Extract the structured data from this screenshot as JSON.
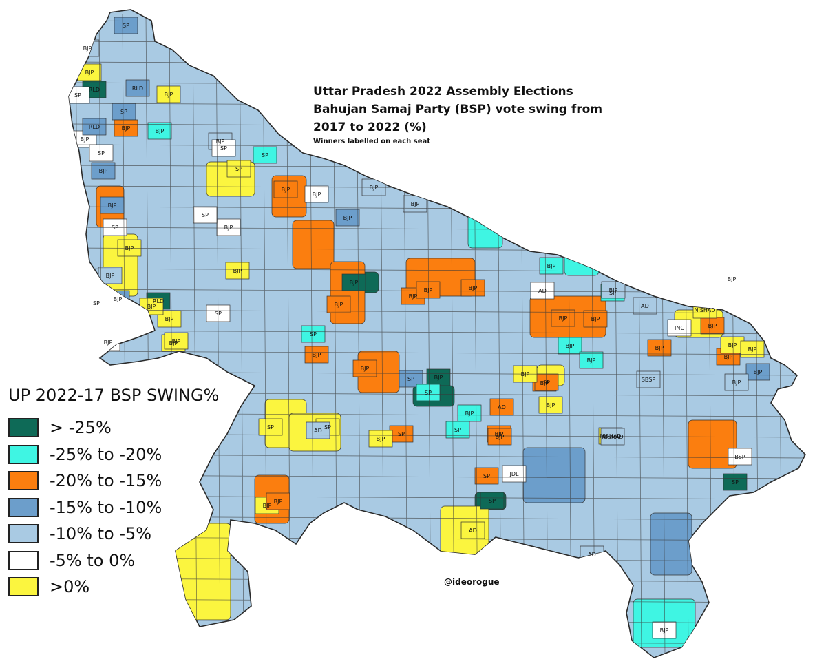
{
  "title_lines": [
    "Uttar Pradesh 2022 Assembly Elections",
    "Bahujan Samaj Party (BSP) vote swing from",
    "2017 to 2022 (%)"
  ],
  "subtitle": "Winners labelled on each seat",
  "credit": "@ideorogue",
  "legend": {
    "title": "UP 2022-17 BSP SWING%",
    "items": [
      {
        "label": "> -25%",
        "color": "#0e6a57"
      },
      {
        "label": "-25% to -20%",
        "color": "#3ff5e3"
      },
      {
        "label": "-20% to -15%",
        "color": "#fb7e0f"
      },
      {
        "label": "-15% to -10%",
        "color": "#6c9ecb"
      },
      {
        "label": "-10% to -5%",
        "color": "#a9cae3"
      },
      {
        "label": "-5% to 0%",
        "color": "#ffffff"
      },
      {
        "label": ">0%",
        "color": "#fbf53f"
      }
    ]
  },
  "seat_labels": [
    {
      "text": "SP",
      "category": 3
    },
    {
      "text": "BJP",
      "category": 4
    },
    {
      "text": "BJP",
      "category": 6
    },
    {
      "text": "RLD",
      "category": 0
    },
    {
      "text": "SP",
      "category": 5
    },
    {
      "text": "RLD",
      "category": 3
    },
    {
      "text": "BJP",
      "category": 6
    },
    {
      "text": "SP",
      "category": 3
    },
    {
      "text": "BJP",
      "category": 5
    },
    {
      "text": "SP",
      "category": 5
    },
    {
      "text": "RLD",
      "category": 3
    },
    {
      "text": "BJP",
      "category": 2
    },
    {
      "text": "BJP",
      "category": 1
    },
    {
      "text": "BJP",
      "category": 3
    },
    {
      "text": "BJP",
      "category": 4
    },
    {
      "text": "SP",
      "category": 5
    },
    {
      "text": "SP",
      "category": 6
    },
    {
      "text": "SP",
      "category": 1
    },
    {
      "text": "BJP",
      "category": 2
    },
    {
      "text": "BJP",
      "category": 5
    },
    {
      "text": "BJP",
      "category": 4
    },
    {
      "text": "BJP",
      "category": 4
    },
    {
      "text": "BJP",
      "category": 3
    },
    {
      "text": "BJP",
      "category": 5
    },
    {
      "text": "SP",
      "category": 5
    },
    {
      "text": "BJP",
      "category": 3
    },
    {
      "text": "SP",
      "category": 5
    },
    {
      "text": "BJP",
      "category": 6
    },
    {
      "text": "BJP",
      "category": 4
    },
    {
      "text": "BJP",
      "category": 3
    },
    {
      "text": "SP",
      "category": 5
    },
    {
      "text": "BJP",
      "category": 5
    },
    {
      "text": "BJP",
      "category": 6
    },
    {
      "text": "BJP",
      "category": 6
    },
    {
      "text": "RLD",
      "category": 0
    },
    {
      "text": "BJP",
      "category": 6
    },
    {
      "text": "BJP",
      "category": 6
    },
    {
      "text": "SP",
      "category": 5
    },
    {
      "text": "BJP",
      "category": 0
    },
    {
      "text": "SP",
      "category": 1
    },
    {
      "text": "BJP",
      "category": 2
    },
    {
      "text": "BJP",
      "category": 2
    },
    {
      "text": "BJP",
      "category": 2
    },
    {
      "text": "BJP",
      "category": 2
    },
    {
      "text": "BJP",
      "category": 2
    },
    {
      "text": "SP",
      "category": 3
    },
    {
      "text": "BJP",
      "category": 1
    },
    {
      "text": "BJP",
      "category": 1
    },
    {
      "text": "AD",
      "category": 5
    },
    {
      "text": "SP",
      "category": 1
    },
    {
      "text": "BJP",
      "category": 4
    },
    {
      "text": "AD",
      "category": 4
    },
    {
      "text": "BJP",
      "category": 2
    },
    {
      "text": "BJP",
      "category": 2
    },
    {
      "text": "BJP",
      "category": 2
    },
    {
      "text": "BJP",
      "category": 2
    },
    {
      "text": "BJP",
      "category": 2
    },
    {
      "text": "BJP",
      "category": 1
    },
    {
      "text": "BJP",
      "category": 2
    },
    {
      "text": "SP",
      "category": 2
    },
    {
      "text": "SP",
      "category": 1
    },
    {
      "text": "NISHAD",
      "category": 6
    },
    {
      "text": "BJP",
      "category": 2
    },
    {
      "text": "NISHAD",
      "category": 6
    },
    {
      "text": "BJP",
      "category": 2
    },
    {
      "text": "BJP",
      "category": 6
    },
    {
      "text": "BJP",
      "category": 6
    },
    {
      "text": "BJP",
      "category": 0
    },
    {
      "text": "SP",
      "category": 1
    },
    {
      "text": "SP",
      "category": 2
    },
    {
      "text": "BJP",
      "category": 6
    },
    {
      "text": "SP",
      "category": 6
    },
    {
      "text": "BJP",
      "category": 2
    },
    {
      "text": "BJP",
      "category": 6
    },
    {
      "text": "SP",
      "category": 6
    },
    {
      "text": "AD",
      "category": 4
    },
    {
      "text": "BJP",
      "category": 6
    },
    {
      "text": "BJP",
      "category": 2
    },
    {
      "text": "SBSP",
      "category": 4
    },
    {
      "text": "SP",
      "category": 2
    },
    {
      "text": "SP",
      "category": 0
    },
    {
      "text": "AD",
      "category": 6
    },
    {
      "text": "SP",
      "category": 0
    },
    {
      "text": "BJP",
      "category": 6
    },
    {
      "text": "BJP",
      "category": 6
    },
    {
      "text": "BJP",
      "category": 1
    },
    {
      "text": "AD",
      "category": 2
    },
    {
      "text": "BJP",
      "category": 2
    },
    {
      "text": "NISHAD",
      "category": 4
    },
    {
      "text": "BJP",
      "category": 3
    },
    {
      "text": "BJP",
      "category": 4
    },
    {
      "text": "INC",
      "category": 5
    },
    {
      "text": "JDL",
      "category": 5
    },
    {
      "text": "BSP",
      "category": 5
    },
    {
      "text": "AD",
      "category": 4
    },
    {
      "text": "BJP",
      "category": 5
    }
  ]
}
